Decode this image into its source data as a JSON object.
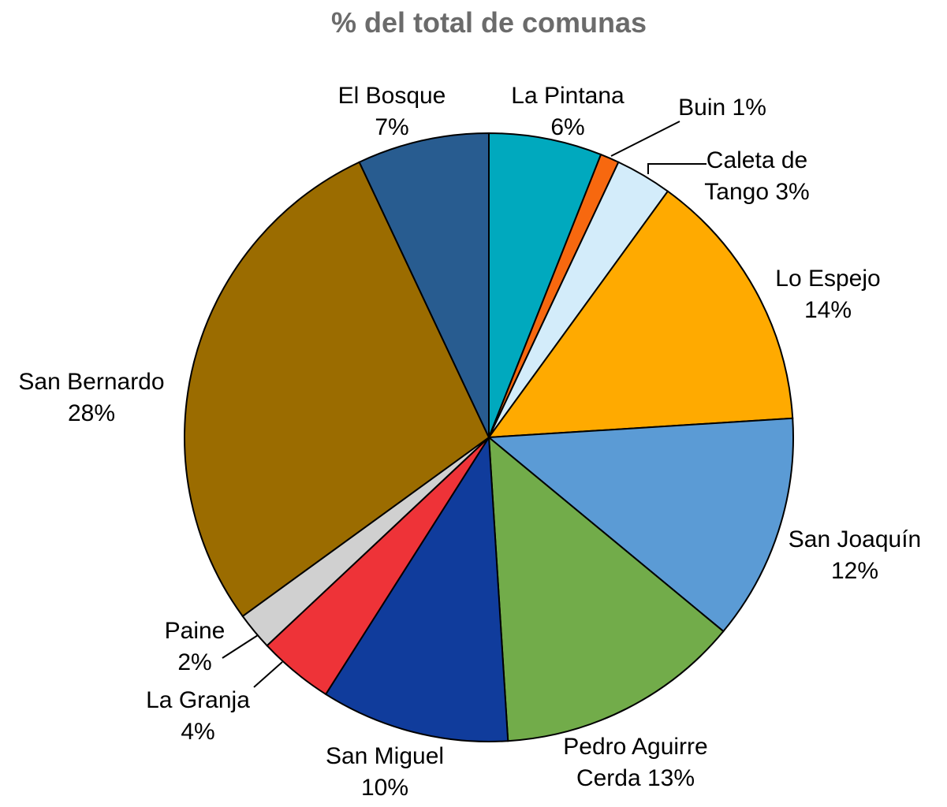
{
  "chart_data": {
    "type": "pie",
    "title": "% del total de comunas",
    "slices": [
      {
        "label": "La Pintana",
        "value": 6,
        "color": "#00A9BE"
      },
      {
        "label": "Buin",
        "value": 1,
        "color": "#F7680F"
      },
      {
        "label": "Caleta de Tango",
        "value": 3,
        "color": "#D3ECFA"
      },
      {
        "label": "Lo Espejo",
        "value": 14,
        "color": "#FFAA00"
      },
      {
        "label": "San Joaquín",
        "value": 12,
        "color": "#5B9BD5"
      },
      {
        "label": "Pedro Aguirre Cerda",
        "value": 13,
        "color": "#72AC4A"
      },
      {
        "label": "San Miguel",
        "value": 10,
        "color": "#103C9C"
      },
      {
        "label": "La Granja",
        "value": 4,
        "color": "#EE3338"
      },
      {
        "label": "Paine",
        "value": 2,
        "color": "#D0D0D0"
      },
      {
        "label": "San Bernardo",
        "value": 28,
        "color": "#9B6C00"
      },
      {
        "label": "El Bosque",
        "value": 7,
        "color": "#285C90"
      }
    ],
    "slice_labels": [
      [
        "La Pintana",
        "6%"
      ],
      [
        "Buin 1%"
      ],
      [
        "Caleta de",
        "Tango 3%"
      ],
      [
        "Lo Espejo",
        "14%"
      ],
      [
        "San Joaquín",
        "12%"
      ],
      [
        "Pedro Aguirre",
        "Cerda 13%"
      ],
      [
        "San Miguel",
        "10%"
      ],
      [
        "La Granja",
        "4%"
      ],
      [
        "Paine",
        "2%"
      ],
      [
        "San Bernardo",
        "28%"
      ],
      [
        "El Bosque",
        "7%"
      ]
    ]
  }
}
